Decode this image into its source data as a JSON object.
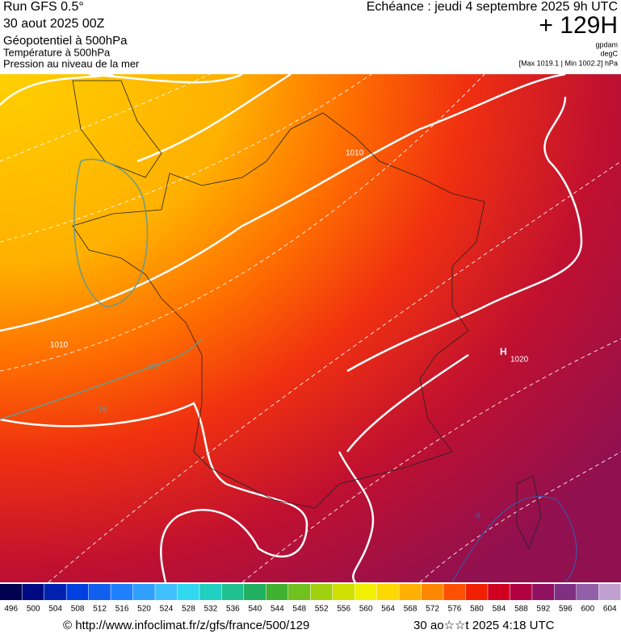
{
  "header": {
    "run": "Run GFS 0.5°",
    "date": "30 aout 2025 00Z",
    "field1": "Géopotentiel à 500hPa",
    "field2": "Température à 500hPa",
    "field3": "Pression au niveau de la mer",
    "valid": "Echéance : jeudi 4 septembre 2025 9h UTC",
    "lead": "+ 129H",
    "unit1": "gpdam",
    "unit2": "degC",
    "range": "[Max 1019.1 | Min 1002.2] hPa"
  },
  "map": {
    "labels": [
      "1010",
      "1010",
      "1020",
      "-16",
      "-16",
      "-8",
      "H"
    ]
  },
  "colorbar": {
    "values": [
      496,
      500,
      504,
      508,
      512,
      516,
      520,
      524,
      528,
      532,
      536,
      540,
      544,
      548,
      552,
      556,
      560,
      564,
      568,
      572,
      576,
      580,
      584,
      588,
      592,
      596,
      600,
      604
    ],
    "colors": [
      "#000050",
      "#000a80",
      "#0020b0",
      "#0040e0",
      "#1060f0",
      "#2080ff",
      "#30a0ff",
      "#40c0ff",
      "#30d8f0",
      "#20d0c0",
      "#20c090",
      "#20b060",
      "#40b030",
      "#70c020",
      "#a0d010",
      "#d0e000",
      "#f0f000",
      "#ffd800",
      "#ffb000",
      "#ff8800",
      "#ff5000",
      "#f02000",
      "#d00020",
      "#b00040",
      "#901060",
      "#803080",
      "#9060a8",
      "#c0a0d0"
    ]
  },
  "footer": {
    "url": "© http://www.infoclimat.fr/z/gfs/france/500/129",
    "stamp": "30 ao☆☆t 2025  4:18 UTC"
  }
}
